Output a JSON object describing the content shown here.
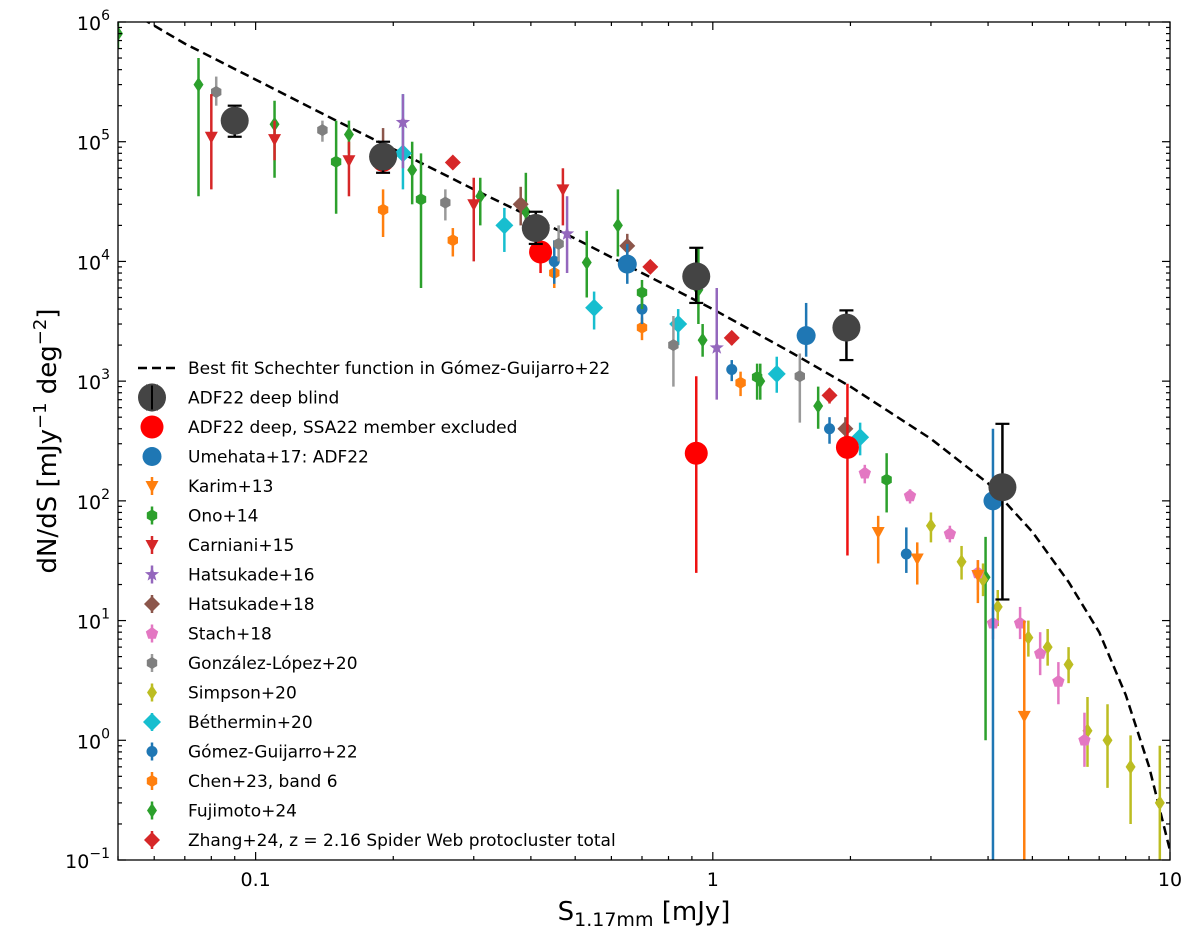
{
  "chart_data": {
    "type": "scatter",
    "xscale": "log",
    "yscale": "log",
    "xlim": [
      0.05,
      10
    ],
    "ylim": [
      0.1,
      1000000
    ],
    "xlabel_main": "S",
    "xlabel_sub": "1.17mm",
    "xlabel_unit": " [mJy]",
    "ylabel_main": "dN/dS [mJy",
    "ylabel_exp1": "−1",
    "ylabel_mid": " deg",
    "ylabel_exp2": "−2",
    "ylabel_end": "]",
    "x_ticks": [
      {
        "value": 0.1,
        "label": "0.1"
      },
      {
        "value": 1,
        "label": "1"
      },
      {
        "value": 10,
        "label": "10"
      }
    ],
    "y_ticks": [
      {
        "value": 0.1,
        "base": "10",
        "exp": "−1"
      },
      {
        "value": 1,
        "base": "10",
        "exp": "0"
      },
      {
        "value": 10,
        "base": "10",
        "exp": "1"
      },
      {
        "value": 100,
        "base": "10",
        "exp": "2"
      },
      {
        "value": 1000,
        "base": "10",
        "exp": "3"
      },
      {
        "value": 10000,
        "base": "10",
        "exp": "4"
      },
      {
        "value": 100000,
        "base": "10",
        "exp": "5"
      },
      {
        "value": 1000000,
        "base": "10",
        "exp": "6"
      }
    ],
    "legend_position": "center-left",
    "fit_line": {
      "name": "Best fit Schechter function  in Gómez-Guijarro+22",
      "color": "#000000",
      "x": [
        0.05,
        0.07,
        0.1,
        0.15,
        0.2,
        0.3,
        0.4,
        0.5,
        0.7,
        1.0,
        1.5,
        2.0,
        3.0,
        4.0,
        5.0,
        6.0,
        7.0,
        8.0,
        9.0,
        10.0
      ],
      "y": [
        1400000,
        660000,
        330000,
        150000,
        87000,
        40000,
        23500,
        15500,
        8000,
        4000,
        1700,
        900,
        330,
        140,
        55,
        21,
        8.0,
        2.4,
        0.6,
        0.12
      ]
    },
    "series": [
      {
        "name": "ADF22 deep blind",
        "marker": "circle-big",
        "color": "#444444",
        "errcolor": "#000000",
        "capsize": 1,
        "points": [
          [
            0.09,
            150000,
            110000,
            200000
          ],
          [
            0.19,
            75000,
            55000,
            100000
          ],
          [
            0.41,
            19000,
            14000,
            26000
          ],
          [
            0.92,
            7500,
            4500,
            13000
          ],
          [
            1.96,
            2800,
            1500,
            3900
          ],
          [
            4.3,
            130,
            15,
            440
          ]
        ]
      },
      {
        "name": "ADF22 deep, SSA22 member excluded",
        "marker": "circle-red",
        "color": "#ff0000",
        "errcolor": "#ee1111",
        "capsize": 0,
        "points": [
          [
            0.09,
            150000,
            120000,
            190000
          ],
          [
            0.19,
            70000,
            55000,
            90000
          ],
          [
            0.42,
            12000,
            8000,
            16000
          ],
          [
            0.92,
            250,
            25,
            1100
          ],
          [
            1.97,
            280,
            35,
            950
          ]
        ]
      },
      {
        "name": "Umehata+17: ADF22",
        "marker": "circle",
        "color": "#1f77b4",
        "errcolor": "#1f77b4",
        "capsize": 0,
        "points": [
          [
            0.65,
            9500,
            6500,
            14000
          ],
          [
            1.6,
            2400,
            1600,
            4500
          ],
          [
            4.1,
            100,
            0.09,
            400
          ]
        ]
      },
      {
        "name": "Karim+13",
        "marker": "tri-down",
        "color": "#ff7f0e",
        "errcolor": "#ff7f0e",
        "capsize": 0,
        "points": [
          [
            2.3,
            55,
            30,
            75
          ],
          [
            2.8,
            33,
            20,
            45
          ],
          [
            3.8,
            24,
            14,
            32
          ],
          [
            4.8,
            1.6,
            0.09,
            10
          ]
        ]
      },
      {
        "name": "Ono+14",
        "marker": "hexagon",
        "color": "#2ca02c",
        "errcolor": "#2ca02c",
        "capsize": 0,
        "points": [
          [
            0.15,
            68000,
            25000,
            150000
          ],
          [
            0.23,
            33000,
            6000,
            80000
          ],
          [
            0.7,
            5500,
            4000,
            7000
          ],
          [
            1.25,
            1080,
            700,
            1400
          ],
          [
            2.4,
            150,
            80,
            250
          ]
        ]
      },
      {
        "name": "Carniani+15",
        "marker": "tri-down",
        "color": "#d62728",
        "errcolor": "#d62728",
        "capsize": 0,
        "points": [
          [
            0.08,
            110000,
            40000,
            250000
          ],
          [
            0.11,
            105000,
            70000,
            150000
          ],
          [
            0.16,
            70000,
            35000,
            100000
          ],
          [
            0.3,
            30000,
            10000,
            50000
          ],
          [
            0.47,
            40000,
            20000,
            60000
          ]
        ]
      },
      {
        "name": "Hatsukade+16",
        "marker": "star",
        "color": "#9467bd",
        "errcolor": "#9467bd",
        "capsize": 0,
        "points": [
          [
            0.21,
            145000,
            60000,
            250000
          ],
          [
            0.48,
            17000,
            8000,
            35000
          ],
          [
            1.02,
            1900,
            700,
            6000
          ]
        ]
      },
      {
        "name": "Hatsukade+18",
        "marker": "diamond",
        "color": "#8c564b",
        "errcolor": "#8c564b",
        "capsize": 0,
        "points": [
          [
            0.19,
            80000,
            55000,
            130000
          ],
          [
            0.38,
            30000,
            20000,
            42000
          ],
          [
            0.65,
            13500,
            10000,
            17000
          ],
          [
            1.95,
            400,
            300,
            500
          ]
        ]
      },
      {
        "name": "Stach+18",
        "marker": "pentagon",
        "color": "#e377c2",
        "errcolor": "#e377c2",
        "capsize": 0,
        "points": [
          [
            2.15,
            170,
            140,
            200
          ],
          [
            2.7,
            110,
            95,
            125
          ],
          [
            3.3,
            53,
            45,
            62
          ],
          [
            3.8,
            25,
            18,
            32
          ],
          [
            4.1,
            9.5,
            7,
            13
          ],
          [
            4.7,
            9.5,
            7,
            13
          ],
          [
            5.2,
            5.3,
            3.5,
            8
          ],
          [
            5.7,
            3.1,
            2,
            4.5
          ],
          [
            6.5,
            1,
            0.6,
            1.7
          ]
        ]
      },
      {
        "name": "González-López+20",
        "marker": "hexagon",
        "color": "#7f7f7f",
        "errcolor": "#9a9a9a",
        "capsize": 0,
        "points": [
          [
            0.082,
            260000,
            200000,
            350000
          ],
          [
            0.14,
            125000,
            100000,
            150000
          ],
          [
            0.26,
            31000,
            22000,
            40000
          ],
          [
            0.46,
            14000,
            10000,
            20000
          ],
          [
            0.82,
            2000,
            900,
            3500
          ],
          [
            1.55,
            1100,
            450,
            1700
          ]
        ]
      },
      {
        "name": "Simpson+20",
        "marker": "thin-diamond",
        "color": "#bcbd22",
        "errcolor": "#bcbd22",
        "capsize": 0,
        "points": [
          [
            3.0,
            62,
            45,
            80
          ],
          [
            3.5,
            31,
            22,
            42
          ],
          [
            3.9,
            22,
            16,
            30
          ],
          [
            4.2,
            13,
            9,
            18
          ],
          [
            4.9,
            7.2,
            5,
            10
          ],
          [
            5.4,
            6,
            4.2,
            8.5
          ],
          [
            6.0,
            4.3,
            3,
            6
          ],
          [
            6.6,
            1.2,
            0.6,
            2.3
          ],
          [
            7.3,
            1.0,
            0.4,
            2.0
          ],
          [
            8.2,
            0.6,
            0.2,
            1.1
          ],
          [
            9.5,
            0.3,
            0.09,
            0.9
          ]
        ]
      },
      {
        "name": "Béthermin+20",
        "marker": "diamond-big",
        "color": "#17becf",
        "errcolor": "#17becf",
        "capsize": 0,
        "points": [
          [
            0.21,
            80000,
            40000,
            250000
          ],
          [
            0.35,
            20000,
            12000,
            28000
          ],
          [
            0.55,
            4100,
            2700,
            5600
          ],
          [
            0.84,
            3000,
            2000,
            4000
          ],
          [
            1.38,
            1150,
            800,
            1600
          ],
          [
            2.1,
            340,
            240,
            450
          ]
        ]
      },
      {
        "name": "Gómez-Guijarro+22",
        "marker": "circle-small",
        "color": "#1f77b4",
        "errcolor": "#1f77b4",
        "capsize": 0,
        "points": [
          [
            0.45,
            10000,
            6500,
            15000
          ],
          [
            0.7,
            4000,
            3000,
            5000
          ],
          [
            1.1,
            1250,
            1000,
            1500
          ],
          [
            1.8,
            400,
            300,
            500
          ],
          [
            2.65,
            36,
            25,
            60
          ]
        ]
      },
      {
        "name": "Chen+23, band 6",
        "marker": "hexagon",
        "color": "#ff7f0e",
        "errcolor": "#ff7f0e",
        "capsize": 0,
        "points": [
          [
            0.19,
            27000,
            16000,
            40000
          ],
          [
            0.27,
            15000,
            11000,
            19000
          ],
          [
            0.45,
            8000,
            6000,
            10500
          ],
          [
            0.7,
            2800,
            2200,
            3400
          ],
          [
            1.15,
            970,
            750,
            1200
          ]
        ]
      },
      {
        "name": "Fujimoto+24",
        "marker": "thin-diamond",
        "color": "#2ca02c",
        "errcolor": "#2ca02c",
        "capsize": 0,
        "points": [
          [
            0.05,
            800000,
            600000,
            1000000
          ],
          [
            0.075,
            300000,
            35000,
            500000
          ],
          [
            0.11,
            140000,
            50000,
            220000
          ],
          [
            0.16,
            115000,
            80000,
            150000
          ],
          [
            0.22,
            58000,
            30000,
            100000
          ],
          [
            0.31,
            35000,
            20000,
            50000
          ],
          [
            0.39,
            26000,
            20000,
            55000
          ],
          [
            0.53,
            9800,
            5000,
            18000
          ],
          [
            0.62,
            20000,
            11000,
            40000
          ],
          [
            0.93,
            5800,
            3000,
            13000
          ],
          [
            0.95,
            2200,
            1600,
            3000
          ],
          [
            1.27,
            1000,
            700,
            1400
          ],
          [
            1.7,
            620,
            400,
            900
          ],
          [
            3.95,
            23,
            1,
            50
          ]
        ]
      },
      {
        "name": "Zhang+24, z = 2.16 Spider Web protocluster total",
        "marker": "diamond",
        "color": "#d62728",
        "errcolor": "#d62728",
        "capsize": 0,
        "points": [
          [
            0.27,
            67000,
            60000,
            74000
          ],
          [
            0.73,
            9000,
            8000,
            10000
          ],
          [
            1.1,
            2300,
            2000,
            2600
          ],
          [
            1.8,
            760,
            650,
            870
          ]
        ]
      }
    ]
  }
}
